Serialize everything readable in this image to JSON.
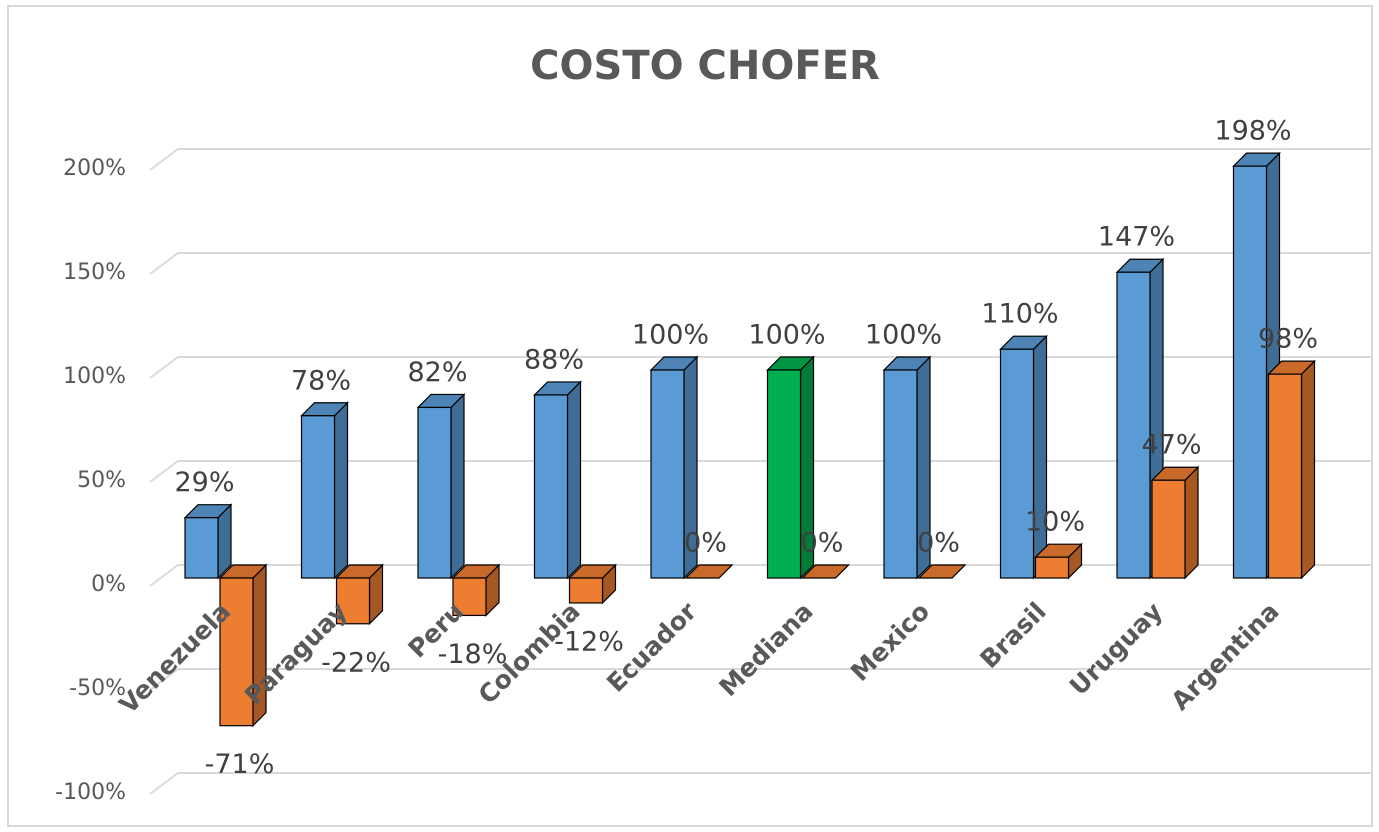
{
  "chart_data": {
    "type": "bar3d",
    "title": "COSTO CHOFER",
    "categories": [
      "Venezuela",
      "Paraguay",
      "Peru",
      "Colombia",
      "Ecuador",
      "Mediana",
      "Mexico",
      "Brasil",
      "Uruguay",
      "Argentina"
    ],
    "series": [
      {
        "color": "#5b9bd5",
        "colors": [
          "#5b9bd5",
          "#5b9bd5",
          "#5b9bd5",
          "#5b9bd5",
          "#5b9bd5",
          "#00b050",
          "#5b9bd5",
          "#5b9bd5",
          "#5b9bd5",
          "#5b9bd5"
        ],
        "values": [
          29,
          78,
          82,
          88,
          100,
          100,
          100,
          110,
          147,
          198
        ],
        "value_labels": [
          "29%",
          "78%",
          "82%",
          "88%",
          "100%",
          "100%",
          "100%",
          "110%",
          "147%",
          "198%"
        ]
      },
      {
        "color": "#ed7d31",
        "values": [
          -71,
          -22,
          -18,
          -12,
          0,
          0,
          0,
          10,
          47,
          98
        ],
        "value_labels": [
          "-71%",
          "-22%",
          "-18%",
          "-12%",
          "0%",
          "0%",
          "0%",
          "10%",
          "47%",
          "98%"
        ]
      }
    ],
    "ylim": [
      -100,
      200
    ],
    "yticks": [
      {
        "value": -100,
        "label": "-100%"
      },
      {
        "value": -50,
        "label": "-50%"
      },
      {
        "value": 0,
        "label": "0%"
      },
      {
        "value": 50,
        "label": "50%"
      },
      {
        "value": 100,
        "label": "100%"
      },
      {
        "value": 150,
        "label": "150%"
      },
      {
        "value": 200,
        "label": "200%"
      }
    ],
    "grid": true
  }
}
